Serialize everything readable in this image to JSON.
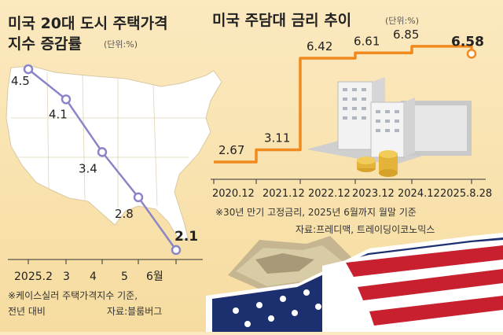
{
  "colors": {
    "background": "#fbe9bf",
    "left_line": "#8a84c8",
    "right_line": "#f08a1e",
    "text_dark": "#222222",
    "text_gray": "#555555"
  },
  "chart_data": [
    {
      "type": "line",
      "title": "미국 20대 도시 주택가격",
      "title_line2": "지수 증감률",
      "unit": "(단위:%)",
      "categories": [
        "2025.2",
        "3",
        "4",
        "5",
        "6월"
      ],
      "values": [
        4.5,
        4.1,
        3.4,
        2.8,
        2.1
      ],
      "value_labels": [
        "4.5",
        "4.1",
        "3.4",
        "2.8",
        "2.1"
      ],
      "note": "※케이스실러 주택가격지수 기준,",
      "note_line2": "전년 대비",
      "source": "자료:블룸버그"
    },
    {
      "type": "line",
      "step": true,
      "title": "미국 주담대 금리 추이",
      "unit": "(단위:%)",
      "categories": [
        "2020.12",
        "2021.12",
        "2022.12",
        "2023.12",
        "2024.12",
        "2025.8.28"
      ],
      "values": [
        2.67,
        3.11,
        6.42,
        6.61,
        6.85,
        6.58
      ],
      "value_labels": [
        "2.67",
        "3.11",
        "6.42",
        "6.61",
        "6.85",
        "6.58"
      ],
      "note": "※30년 만기 고정금리, 2025년 6월까지 월말 기준",
      "source": "자료:프레디맥, 트레이딩이코노믹스"
    }
  ]
}
